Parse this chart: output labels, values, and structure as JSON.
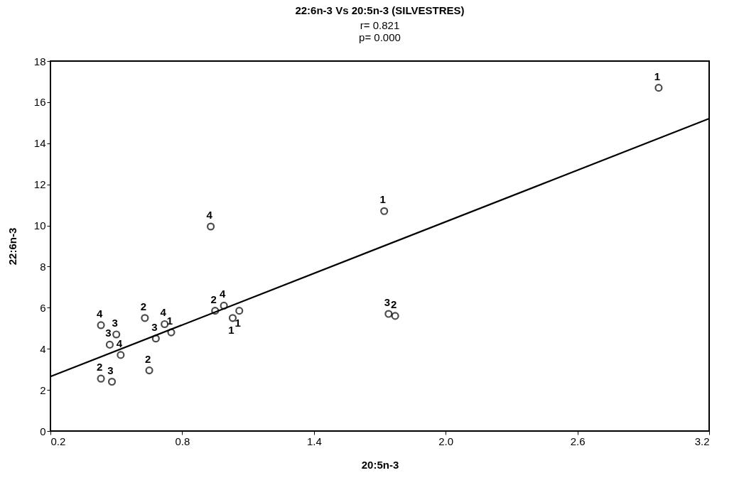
{
  "chart_data": {
    "type": "scatter",
    "title": "22:6n-3 Vs 20:5n-3 (SILVESTRES)",
    "subtitle": [
      "r= 0.821",
      "p= 0.000"
    ],
    "xlabel": "20:5n-3",
    "ylabel": "22:6n-3",
    "xlim": [
      0.2,
      3.2
    ],
    "xticks": [
      0.2,
      0.8,
      1.4,
      {
        "value": 2.0,
        "label": "2.0"
      },
      2.6,
      3.2
    ],
    "ylim": [
      0,
      18
    ],
    "yticks": [
      0,
      2,
      4,
      6,
      8,
      10,
      12,
      14,
      16,
      18
    ],
    "grid": false,
    "marker": "circle",
    "series": [
      {
        "type": "scatter",
        "color": "#000000",
        "x": [
          2.97,
          1.72,
          0.93,
          1.74,
          1.77,
          0.95,
          0.99,
          1.06,
          1.03,
          0.63,
          0.72,
          0.75,
          0.68,
          0.65,
          0.43,
          0.5,
          0.47,
          0.52,
          0.43,
          0.48
        ],
        "values": [
          16.7,
          10.7,
          9.95,
          5.7,
          5.6,
          5.85,
          6.1,
          5.85,
          5.5,
          5.5,
          5.2,
          4.8,
          4.5,
          2.95,
          5.15,
          4.7,
          4.2,
          3.7,
          2.55,
          2.4
        ]
      },
      {
        "type": "line",
        "color": "#000000",
        "line_style": "solid",
        "marker": "none",
        "x": [
          0.2,
          3.2
        ],
        "values": [
          2.65,
          15.2
        ]
      }
    ],
    "annotations": [
      {
        "text": "1",
        "x": 2.97,
        "y": 16.7
      },
      {
        "text": "1",
        "x": 1.72,
        "y": 10.7
      },
      {
        "text": "4",
        "x": 0.93,
        "y": 9.95
      },
      {
        "text": "3",
        "x": 1.74,
        "y": 5.7
      },
      {
        "text": "2",
        "x": 1.77,
        "y": 5.6
      },
      {
        "text": "2",
        "x": 0.95,
        "y": 5.85
      },
      {
        "text": "4",
        "x": 0.99,
        "y": 6.1
      },
      {
        "text": "1",
        "x": 1.06,
        "y": 5.85
      },
      {
        "text": "1",
        "x": 1.03,
        "y": 5.5
      },
      {
        "text": "2",
        "x": 0.63,
        "y": 5.5
      },
      {
        "text": "4",
        "x": 0.72,
        "y": 5.2
      },
      {
        "text": "1",
        "x": 0.75,
        "y": 4.8
      },
      {
        "text": "3",
        "x": 0.68,
        "y": 4.5
      },
      {
        "text": "2",
        "x": 0.65,
        "y": 2.95
      },
      {
        "text": "4",
        "x": 0.43,
        "y": 5.15
      },
      {
        "text": "3",
        "x": 0.5,
        "y": 4.7
      },
      {
        "text": "3",
        "x": 0.47,
        "y": 4.2
      },
      {
        "text": "4",
        "x": 0.52,
        "y": 3.7
      },
      {
        "text": "2",
        "x": 0.43,
        "y": 2.55
      },
      {
        "text": "3",
        "x": 0.48,
        "y": 2.4
      }
    ]
  }
}
